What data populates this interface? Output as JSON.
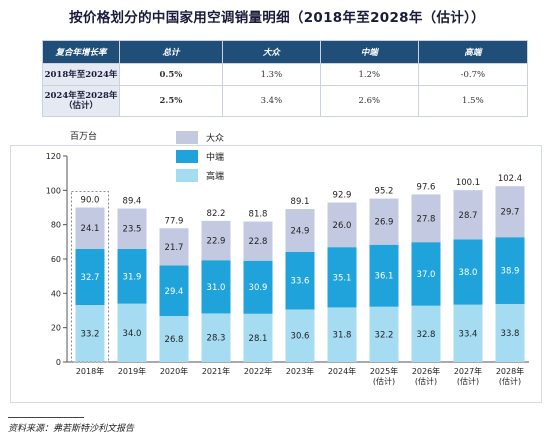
{
  "title": "按价格划分的中国家用空调销量明细（2018年至2028年（估计））",
  "growth_table": {
    "headers": [
      "复合年增长率",
      "总计",
      "大众",
      "中端",
      "高端"
    ],
    "rows": [
      {
        "label": "2018年至2024年",
        "values": [
          "0.5%",
          "1.3%",
          "1.2%",
          "-0.7%"
        ]
      },
      {
        "label": "2024年至2028年（估计）",
        "values": [
          "2.5%",
          "3.4%",
          "2.6%",
          "1.5%"
        ]
      }
    ]
  },
  "source": "资料来源：弗若斯特沙利文报告",
  "colors": {
    "mass": "#c3c9e0",
    "mid": "#1fa3da",
    "high": "#a6dcf1",
    "header": "#1f4e79"
  },
  "chart_data": {
    "type": "bar",
    "stacked": true,
    "ylabel": "百万台",
    "ylim": [
      0,
      120
    ],
    "yticks": [
      0,
      20,
      40,
      60,
      80,
      100,
      120
    ],
    "categories": [
      "2018年",
      "2019年",
      "2020年",
      "2021年",
      "2022年",
      "2023年",
      "2024年",
      "2025年\n(估计)",
      "2026年\n(估计)",
      "2027年\n(估计)",
      "2028年\n(估计)"
    ],
    "series": [
      {
        "name": "高端",
        "values": [
          33.2,
          34.0,
          26.8,
          28.3,
          28.1,
          30.6,
          31.8,
          32.2,
          32.8,
          33.4,
          33.8
        ]
      },
      {
        "name": "中端",
        "values": [
          32.7,
          31.9,
          29.4,
          31.0,
          30.9,
          33.6,
          35.1,
          36.1,
          37.0,
          38.0,
          38.9
        ]
      },
      {
        "name": "大众",
        "values": [
          24.1,
          23.5,
          21.7,
          22.9,
          22.8,
          24.9,
          26.0,
          26.9,
          27.8,
          28.7,
          29.7
        ]
      }
    ],
    "totals": [
      90.0,
      89.4,
      77.9,
      82.2,
      81.8,
      89.1,
      92.9,
      95.2,
      97.6,
      100.1,
      102.4
    ],
    "legend": [
      "大众",
      "中端",
      "高端"
    ],
    "legend_position": "top-left"
  }
}
